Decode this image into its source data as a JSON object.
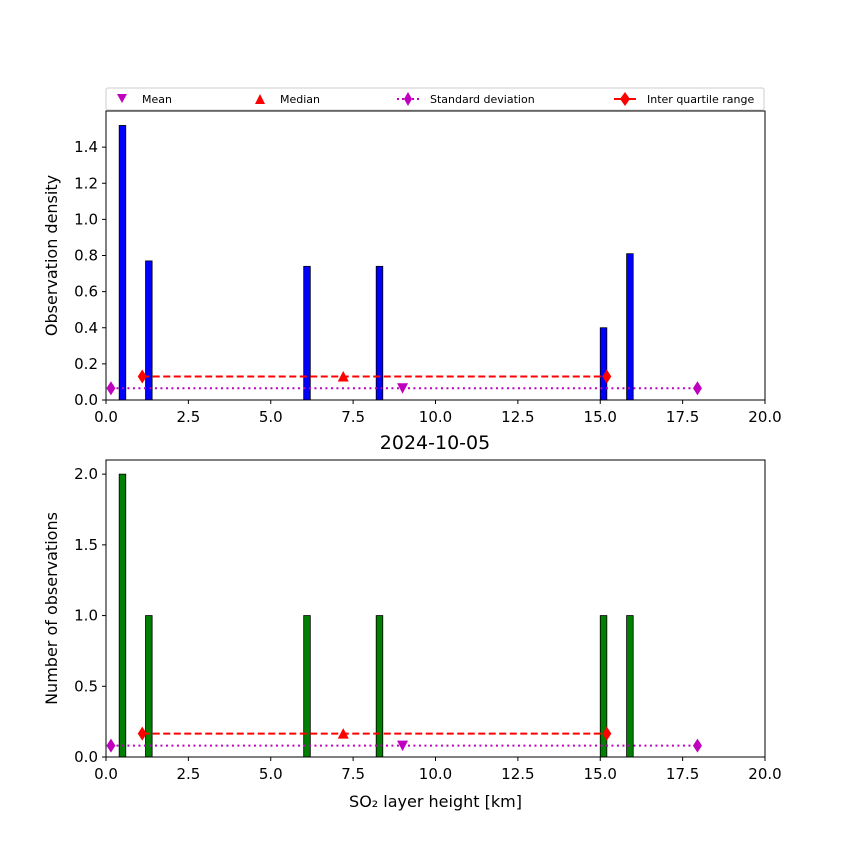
{
  "chart_data": [
    {
      "type": "bar",
      "title": "",
      "xlabel": "",
      "ylabel": "Observation density",
      "xlim": [
        0,
        20
      ],
      "ylim": [
        0,
        1.6
      ],
      "xticks": [
        "0.0",
        "2.5",
        "5.0",
        "7.5",
        "10.0",
        "12.5",
        "15.0",
        "17.5",
        "20.0"
      ],
      "yticks": [
        "0.0",
        "0.2",
        "0.4",
        "0.6",
        "0.8",
        "1.0",
        "1.2",
        "1.4"
      ],
      "bar_color": "#0000ff",
      "bars": [
        {
          "x": 0.5,
          "value": 1.52
        },
        {
          "x": 1.3,
          "value": 0.77
        },
        {
          "x": 6.1,
          "value": 0.74
        },
        {
          "x": 8.3,
          "value": 0.74
        },
        {
          "x": 15.1,
          "value": 0.4
        },
        {
          "x": 15.9,
          "value": 0.81
        }
      ],
      "bar_width": 0.2,
      "mean": {
        "x": 9.0,
        "y": 0.065
      },
      "median": {
        "x": 7.2,
        "y": 0.13
      },
      "std_range": {
        "y": 0.065,
        "x": [
          0.15,
          17.95
        ]
      },
      "iqr_range": {
        "y": 0.13,
        "x": [
          1.1,
          15.2
        ]
      },
      "legend": {
        "position": "top",
        "entries": [
          {
            "key": "mean",
            "label": "Mean"
          },
          {
            "key": "median",
            "label": "Median"
          },
          {
            "key": "std",
            "label": "Standard deviation"
          },
          {
            "key": "iqr",
            "label": "Inter quartile range"
          }
        ]
      }
    },
    {
      "type": "bar",
      "title": "2024-10-05",
      "xlabel": "SO₂ layer height [km]",
      "ylabel": "Number of observations",
      "xlim": [
        0,
        20
      ],
      "ylim": [
        0,
        2.1
      ],
      "xticks": [
        "0.0",
        "2.5",
        "5.0",
        "7.5",
        "10.0",
        "12.5",
        "15.0",
        "17.5",
        "20.0"
      ],
      "yticks": [
        "0.0",
        "0.5",
        "1.0",
        "1.5",
        "2.0"
      ],
      "bar_color": "#008000",
      "bars": [
        {
          "x": 0.5,
          "value": 2
        },
        {
          "x": 1.3,
          "value": 1
        },
        {
          "x": 6.1,
          "value": 1
        },
        {
          "x": 8.3,
          "value": 1
        },
        {
          "x": 15.1,
          "value": 1
        },
        {
          "x": 15.9,
          "value": 1
        }
      ],
      "bar_width": 0.2,
      "mean": {
        "x": 9.0,
        "y": 0.08
      },
      "median": {
        "x": 7.2,
        "y": 0.165
      },
      "std_range": {
        "y": 0.08,
        "x": [
          0.15,
          17.95
        ]
      },
      "iqr_range": {
        "y": 0.165,
        "x": [
          1.1,
          15.2
        ]
      }
    }
  ],
  "colors": {
    "mean": "#bf00bf",
    "median": "#ff0000",
    "std": "#bf00bf",
    "iqr": "#ff0000"
  }
}
